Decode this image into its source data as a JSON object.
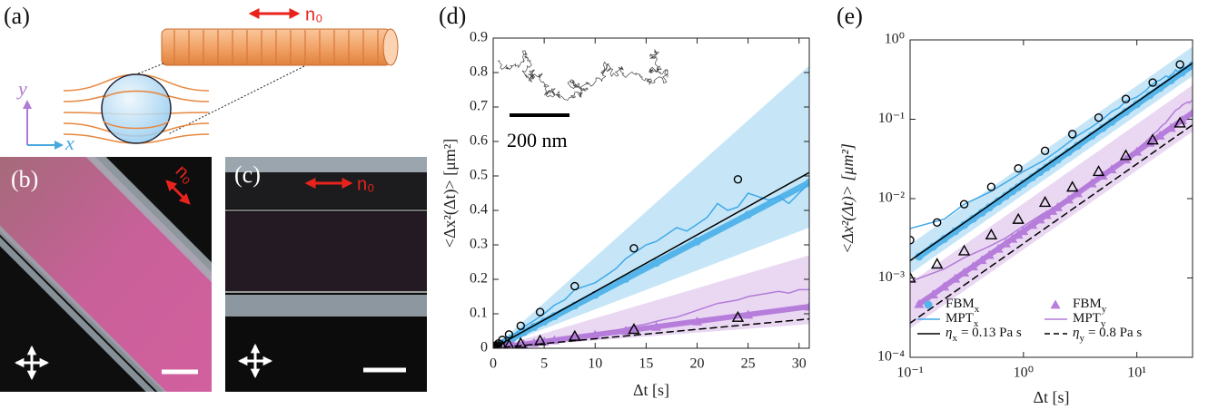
{
  "panels": {
    "a": {
      "label": "(a)",
      "director": "n₀",
      "axis_y": "y",
      "axis_x": "x"
    },
    "b": {
      "label": "(b)",
      "director": "n₀"
    },
    "c": {
      "label": "(c)",
      "director": "n₀"
    }
  },
  "chart_data": [
    {
      "type": "line",
      "panel_label": "(d)",
      "inset_scale_label": "200 nm",
      "xlabel": "Δt [s]",
      "ylabel": "<Δx²(Δt)> [μm²]",
      "xlim": [
        0,
        31
      ],
      "ylim": [
        0,
        0.9
      ],
      "xticks": [
        0,
        5,
        10,
        15,
        20,
        25,
        30
      ],
      "yticks": [
        0,
        0.1,
        0.2,
        0.3,
        0.4,
        0.5,
        0.6,
        0.7,
        0.8,
        0.9
      ],
      "series": [
        {
          "kind": "band",
          "color": "#c6e6f8",
          "x": [
            0,
            31
          ],
          "lower": [
            0,
            0.35
          ],
          "upper": [
            0,
            0.82
          ]
        },
        {
          "kind": "band",
          "color": "#ead8f3",
          "x": [
            0,
            31
          ],
          "lower": [
            0,
            0.07
          ],
          "upper": [
            0,
            0.27
          ]
        },
        {
          "kind": "line",
          "color": "#55b5ea",
          "width": 7,
          "marker": "dot",
          "x": [
            0.12,
            0.16,
            0.2,
            0.25,
            0.3,
            0.36,
            0.43,
            0.5,
            0.6,
            0.7,
            0.8,
            0.9,
            1,
            1.2,
            1.4,
            1.6,
            1.8,
            2,
            2.5,
            3,
            4,
            5,
            6,
            8,
            10,
            13,
            16,
            20,
            25,
            31
          ],
          "values": [
            0.00186,
            0.00248,
            0.0031,
            0.00388,
            0.00465,
            0.00558,
            0.00667,
            0.00775,
            0.0093,
            0.01085,
            0.0124,
            0.01395,
            0.0155,
            0.0186,
            0.0217,
            0.0248,
            0.0279,
            0.031,
            0.0388,
            0.0465,
            0.062,
            0.0775,
            0.093,
            0.124,
            0.155,
            0.2015,
            0.248,
            0.31,
            0.3875,
            0.4805
          ]
        },
        {
          "kind": "line",
          "color": "#b67ddb",
          "width": 6,
          "marker": "triangle",
          "x": [
            0.12,
            0.16,
            0.2,
            0.25,
            0.3,
            0.36,
            0.43,
            0.5,
            0.6,
            0.7,
            0.8,
            0.9,
            1,
            1.2,
            1.4,
            1.6,
            1.8,
            2,
            2.5,
            3,
            4,
            5,
            6,
            8,
            10,
            13,
            16,
            20,
            25,
            31
          ],
          "values": [
            0.00047,
            0.00062,
            0.00078,
            0.00098,
            0.00117,
            0.0014,
            0.00168,
            0.00195,
            0.00234,
            0.00273,
            0.00312,
            0.00351,
            0.0039,
            0.00468,
            0.00546,
            0.00624,
            0.00702,
            0.0078,
            0.00975,
            0.0117,
            0.0156,
            0.0195,
            0.0234,
            0.0312,
            0.039,
            0.0507,
            0.0624,
            0.078,
            0.0975,
            0.1209
          ]
        },
        {
          "kind": "line",
          "color": "#3ea9e8",
          "width": 1.5,
          "x": [
            0.1,
            0.2,
            0.3,
            0.5,
            0.7,
            1,
            1.5,
            2,
            3,
            4,
            5,
            6,
            7,
            8,
            9,
            10,
            11,
            12,
            13,
            14,
            15,
            16,
            17,
            18,
            19,
            20,
            21,
            22,
            23,
            24,
            25,
            26,
            27,
            28,
            29,
            30,
            31
          ],
          "values": [
            0.0042,
            0.0055,
            0.0085,
            0.012,
            0.016,
            0.022,
            0.03,
            0.04,
            0.062,
            0.08,
            0.1,
            0.125,
            0.14,
            0.17,
            0.18,
            0.19,
            0.21,
            0.23,
            0.26,
            0.28,
            0.3,
            0.31,
            0.33,
            0.35,
            0.34,
            0.36,
            0.38,
            0.42,
            0.4,
            0.41,
            0.45,
            0.44,
            0.43,
            0.44,
            0.42,
            0.45,
            0.48
          ]
        },
        {
          "kind": "line",
          "color": "#b27bd7",
          "width": 1.5,
          "x": [
            0.1,
            0.2,
            0.3,
            0.5,
            0.7,
            1,
            1.5,
            2,
            3,
            4,
            5,
            6,
            7,
            8,
            9,
            10,
            11,
            12,
            13,
            14,
            15,
            16,
            17,
            18,
            19,
            20,
            21,
            22,
            23,
            24,
            25,
            26,
            27,
            28,
            29,
            30,
            31
          ],
          "values": [
            0.0009,
            0.0013,
            0.0018,
            0.0025,
            0.0032,
            0.0045,
            0.0065,
            0.008,
            0.012,
            0.016,
            0.02,
            0.024,
            0.028,
            0.032,
            0.036,
            0.042,
            0.047,
            0.052,
            0.058,
            0.065,
            0.07,
            0.078,
            0.085,
            0.09,
            0.1,
            0.11,
            0.12,
            0.13,
            0.135,
            0.14,
            0.15,
            0.155,
            0.16,
            0.165,
            0.16,
            0.17,
            0.17
          ]
        },
        {
          "kind": "line",
          "color": "#000000",
          "width": 1.5,
          "x": [
            0,
            31
          ],
          "values": [
            0,
            0.51
          ]
        },
        {
          "kind": "line",
          "color": "#000000",
          "width": 1.5,
          "dash": true,
          "x": [
            0,
            31
          ],
          "values": [
            0,
            0.085
          ]
        },
        {
          "kind": "scatter",
          "color": "#000000",
          "marker": "circle-open",
          "x": [
            0.1,
            0.173,
            0.3,
            0.52,
            0.9,
            1.55,
            2.7,
            4.6,
            8,
            13.8,
            24
          ],
          "values": [
            0.003,
            0.005,
            0.0085,
            0.014,
            0.024,
            0.04,
            0.065,
            0.105,
            0.18,
            0.29,
            0.49
          ]
        },
        {
          "kind": "scatter",
          "color": "#000000",
          "marker": "triangle-open",
          "x": [
            0.1,
            0.173,
            0.3,
            0.52,
            0.9,
            1.55,
            2.7,
            4.6,
            8,
            13.8,
            24
          ],
          "values": [
            0.001,
            0.0015,
            0.0022,
            0.0035,
            0.0055,
            0.009,
            0.014,
            0.022,
            0.035,
            0.055,
            0.09
          ]
        }
      ]
    },
    {
      "type": "line",
      "panel_label": "(e)",
      "xlabel": "Δt [s]",
      "ylabel": "<Δx²(Δt)> [μm²]",
      "xscale": "log",
      "yscale": "log",
      "xlim": [
        0.1,
        31
      ],
      "ylim": [
        0.0001,
        1
      ],
      "xticks": [
        {
          "value": 0.1,
          "label": "10⁻¹"
        },
        {
          "value": 1,
          "label": "10⁰"
        },
        {
          "value": 10,
          "label": "10¹"
        }
      ],
      "yticks": [
        {
          "value": 0.0001,
          "label": "10⁻⁴"
        },
        {
          "value": 0.001,
          "label": "10⁻³"
        },
        {
          "value": 0.01,
          "label": "10⁻²"
        },
        {
          "value": 0.1,
          "label": "10⁻¹"
        },
        {
          "value": 1,
          "label": "10⁰"
        }
      ],
      "legend": "lower right",
      "legend_columns": 2,
      "series": [
        {
          "kind": "band",
          "color": "#c6e6f8",
          "x": [
            0.1,
            31
          ],
          "lower": [
            0.00113,
            0.35
          ],
          "upper": [
            0.00265,
            0.82
          ]
        },
        {
          "kind": "band",
          "color": "#ead8f3",
          "x": [
            0.1,
            31
          ],
          "lower": [
            0.00023,
            0.07
          ],
          "upper": [
            0.00087,
            0.27
          ]
        },
        {
          "kind": "line",
          "name": "FBM",
          "sub": "x",
          "color": "#55b5ea",
          "width": 7,
          "marker": "dot",
          "x": [
            0.12,
            0.16,
            0.2,
            0.25,
            0.3,
            0.36,
            0.43,
            0.5,
            0.6,
            0.7,
            0.8,
            0.9,
            1,
            1.2,
            1.4,
            1.6,
            1.8,
            2,
            2.5,
            3,
            4,
            5,
            6,
            8,
            10,
            13,
            16,
            20,
            25,
            31
          ],
          "values": [
            0.00186,
            0.00248,
            0.0031,
            0.00388,
            0.00465,
            0.00558,
            0.00667,
            0.00775,
            0.0093,
            0.01085,
            0.0124,
            0.01395,
            0.0155,
            0.0186,
            0.0217,
            0.0248,
            0.0279,
            0.031,
            0.0388,
            0.0465,
            0.062,
            0.0775,
            0.093,
            0.124,
            0.155,
            0.2015,
            0.248,
            0.31,
            0.3875,
            0.4805
          ]
        },
        {
          "kind": "line",
          "name": "FBM",
          "sub": "y",
          "color": "#b67ddb",
          "width": 6,
          "marker": "triangle",
          "x": [
            0.12,
            0.16,
            0.2,
            0.25,
            0.3,
            0.36,
            0.43,
            0.5,
            0.6,
            0.7,
            0.8,
            0.9,
            1,
            1.2,
            1.4,
            1.6,
            1.8,
            2,
            2.5,
            3,
            4,
            5,
            6,
            8,
            10,
            13,
            16,
            20,
            25,
            31
          ],
          "values": [
            0.00047,
            0.00062,
            0.00078,
            0.00098,
            0.00117,
            0.0014,
            0.00168,
            0.00195,
            0.00234,
            0.00273,
            0.00312,
            0.00351,
            0.0039,
            0.00468,
            0.00546,
            0.00624,
            0.00702,
            0.0078,
            0.00975,
            0.0117,
            0.0156,
            0.0195,
            0.0234,
            0.0312,
            0.039,
            0.0507,
            0.0624,
            0.078,
            0.0975,
            0.1209
          ]
        },
        {
          "kind": "line",
          "name": "MPT",
          "sub": "x",
          "color": "#3ea9e8",
          "width": 1.5,
          "x": [
            0.1,
            0.2,
            0.3,
            0.5,
            0.7,
            1,
            1.5,
            2,
            3,
            4,
            5,
            6,
            7,
            8,
            9,
            10,
            11,
            12,
            13,
            14,
            15,
            16,
            17,
            18,
            19,
            20,
            21,
            22,
            23,
            24,
            25,
            26,
            27,
            28,
            29,
            30,
            31
          ],
          "values": [
            0.0042,
            0.0055,
            0.0085,
            0.012,
            0.016,
            0.022,
            0.03,
            0.04,
            0.062,
            0.08,
            0.1,
            0.125,
            0.14,
            0.17,
            0.18,
            0.19,
            0.21,
            0.23,
            0.26,
            0.28,
            0.3,
            0.31,
            0.33,
            0.35,
            0.34,
            0.36,
            0.38,
            0.42,
            0.4,
            0.41,
            0.45,
            0.44,
            0.43,
            0.44,
            0.42,
            0.45,
            0.48
          ]
        },
        {
          "kind": "line",
          "name": "MPT",
          "sub": "y",
          "color": "#b27bd7",
          "width": 1.5,
          "x": [
            0.1,
            0.2,
            0.3,
            0.5,
            0.7,
            1,
            1.5,
            2,
            3,
            4,
            5,
            6,
            7,
            8,
            9,
            10,
            11,
            12,
            13,
            14,
            15,
            16,
            17,
            18,
            19,
            20,
            21,
            22,
            23,
            24,
            25,
            26,
            27,
            28,
            29,
            30,
            31
          ],
          "values": [
            0.0009,
            0.0013,
            0.0018,
            0.0025,
            0.0032,
            0.0045,
            0.0065,
            0.008,
            0.012,
            0.016,
            0.02,
            0.024,
            0.028,
            0.032,
            0.036,
            0.042,
            0.047,
            0.052,
            0.058,
            0.065,
            0.07,
            0.078,
            0.085,
            0.09,
            0.1,
            0.11,
            0.12,
            0.13,
            0.135,
            0.14,
            0.15,
            0.155,
            0.16,
            0.165,
            0.16,
            0.17,
            0.17
          ]
        },
        {
          "kind": "line",
          "name": "η",
          "sub": "x",
          "label_rest": "= 0.13 Pa s",
          "color": "#000000",
          "width": 1.5,
          "x": [
            0.1,
            31
          ],
          "values": [
            0.00165,
            0.51
          ]
        },
        {
          "kind": "line",
          "name": "η",
          "sub": "y",
          "label_rest": "= 0.8 Pa s",
          "color": "#000000",
          "width": 1.5,
          "dash": true,
          "x": [
            0.1,
            31
          ],
          "values": [
            0.00027,
            0.085
          ]
        },
        {
          "kind": "scatter",
          "color": "#000000",
          "marker": "circle-open",
          "x": [
            0.1,
            0.173,
            0.3,
            0.52,
            0.9,
            1.55,
            2.7,
            4.6,
            8,
            13.8,
            24
          ],
          "values": [
            0.003,
            0.005,
            0.0085,
            0.014,
            0.024,
            0.04,
            0.065,
            0.105,
            0.18,
            0.29,
            0.49
          ]
        },
        {
          "kind": "scatter",
          "color": "#000000",
          "marker": "triangle-open",
          "x": [
            0.1,
            0.173,
            0.3,
            0.52,
            0.9,
            1.55,
            2.7,
            4.6,
            8,
            13.8,
            24
          ],
          "values": [
            0.001,
            0.0015,
            0.0022,
            0.0035,
            0.0055,
            0.009,
            0.014,
            0.022,
            0.035,
            0.055,
            0.09
          ]
        }
      ]
    }
  ]
}
